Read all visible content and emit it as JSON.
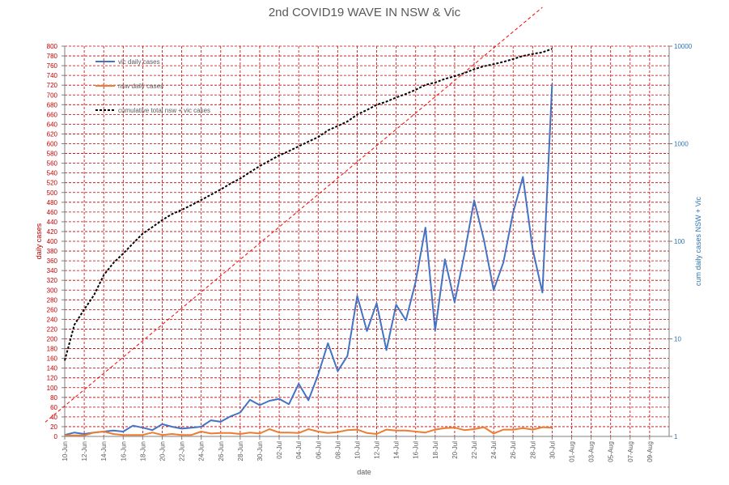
{
  "chart_data": {
    "type": "line",
    "title": "2nd COVID19 WAVE IN NSW & Vic",
    "xlabel": "date",
    "ylabel_left": "daily cases",
    "ylabel_right": "cum daily cases NSW + Vic",
    "ylim_left": [
      0,
      800
    ],
    "ylim_right": [
      1,
      10000
    ],
    "right_axis_scale": "log",
    "grid": true,
    "grid_style": "dashed",
    "legend": "top-left",
    "x_tick_labels": [
      "10-Jun",
      "12-Jun",
      "14-Jun",
      "16-Jun",
      "18-Jun",
      "20-Jun",
      "22-Jun",
      "24-Jun",
      "26-Jun",
      "28-Jun",
      "30-Jun",
      "02-Jul",
      "04-Jul",
      "06-Jul",
      "08-Jul",
      "10-Jul",
      "12-Jul",
      "14-Jul",
      "16-Jul",
      "18-Jul",
      "20-Jul",
      "22-Jul",
      "24-Jul",
      "26-Jul",
      "28-Jul",
      "30-Jul",
      "01-Aug",
      "03-Aug",
      "05-Aug",
      "07-Aug",
      "09-Aug"
    ],
    "left_ticks": [
      0,
      20,
      40,
      60,
      80,
      100,
      120,
      140,
      160,
      180,
      200,
      220,
      240,
      260,
      280,
      300,
      320,
      340,
      360,
      380,
      400,
      420,
      440,
      460,
      480,
      500,
      520,
      540,
      560,
      580,
      600,
      620,
      640,
      660,
      680,
      700,
      720,
      740,
      760,
      780,
      800
    ],
    "right_ticks": [
      1,
      10,
      100,
      1000,
      10000
    ],
    "x": [
      "10-Jun",
      "11-Jun",
      "12-Jun",
      "13-Jun",
      "14-Jun",
      "15-Jun",
      "16-Jun",
      "17-Jun",
      "18-Jun",
      "19-Jun",
      "20-Jun",
      "21-Jun",
      "22-Jun",
      "23-Jun",
      "24-Jun",
      "25-Jun",
      "26-Jun",
      "27-Jun",
      "28-Jun",
      "29-Jun",
      "30-Jun",
      "01-Jul",
      "02-Jul",
      "03-Jul",
      "04-Jul",
      "05-Jul",
      "06-Jul",
      "07-Jul",
      "08-Jul",
      "09-Jul",
      "10-Jul",
      "11-Jul",
      "12-Jul",
      "13-Jul",
      "14-Jul",
      "15-Jul",
      "16-Jul",
      "17-Jul",
      "18-Jul",
      "19-Jul",
      "20-Jul",
      "21-Jul",
      "22-Jul",
      "23-Jul",
      "24-Jul",
      "25-Jul",
      "26-Jul",
      "27-Jul",
      "28-Jul",
      "29-Jul",
      "30-Jul"
    ],
    "series": [
      {
        "name": "vic daily cases",
        "axis": "left",
        "color": "#4472c4",
        "values": [
          3,
          8,
          5,
          8,
          10,
          12,
          10,
          22,
          18,
          13,
          25,
          20,
          16,
          18,
          20,
          33,
          30,
          41,
          49,
          75,
          64,
          73,
          77,
          66,
          108,
          74,
          127,
          191,
          134,
          165,
          288,
          216,
          273,
          177,
          270,
          238,
          317,
          428,
          217,
          363,
          275,
          374,
          484,
          403,
          300,
          357,
          459,
          532,
          384,
          295,
          723
        ]
      },
      {
        "name": "nsw daily cases",
        "axis": "left",
        "color": "#ed7d31",
        "values": [
          2,
          2,
          2,
          8,
          10,
          5,
          3,
          3,
          3,
          8,
          3,
          5,
          3,
          3,
          10,
          6,
          7,
          7,
          5,
          8,
          6,
          15,
          8,
          8,
          7,
          15,
          10,
          7,
          9,
          13,
          14,
          7,
          5,
          14,
          12,
          12,
          10,
          8,
          14,
          17,
          18,
          13,
          15,
          19,
          6,
          14,
          14,
          17,
          14,
          19,
          18
        ]
      },
      {
        "name": "cumulative total nsw + vic cases",
        "axis": "right",
        "style": "dashed",
        "color": "#000000",
        "values": [
          6,
          14,
          20,
          28,
          45,
          60,
          75,
          95,
          120,
          140,
          165,
          190,
          210,
          235,
          265,
          300,
          340,
          390,
          440,
          510,
          590,
          670,
          760,
          840,
          940,
          1050,
          1170,
          1370,
          1520,
          1690,
          1990,
          2220,
          2500,
          2700,
          2980,
          3240,
          3570,
          4010,
          4240,
          4620,
          4910,
          5300,
          5800,
          6220,
          6530,
          6900,
          7380,
          7930,
          8330,
          8650,
          9390
        ]
      },
      {
        "name": "",
        "axis": "right",
        "style": "dashed",
        "color": "#ff0000",
        "trendline": true,
        "values_endpoints": [
          {
            "x": "08-Jun",
            "y": 1.4
          },
          {
            "x": "29-Jul",
            "y": 25000
          }
        ]
      }
    ]
  }
}
